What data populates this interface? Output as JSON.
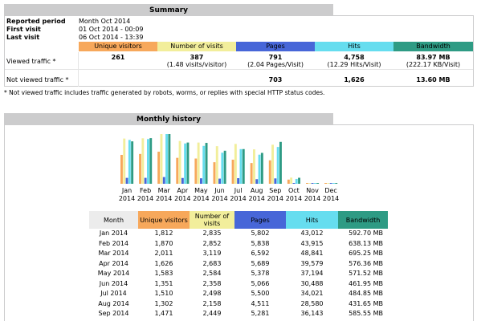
{
  "colors": {
    "unique_visitors": "#f7a85b",
    "visits": "#f2ee9b",
    "pages": "#4766d8",
    "hits": "#66ddef",
    "bandwidth": "#2e9b84",
    "title_bar": "#cccccd"
  },
  "summary": {
    "title": "Summary",
    "reported_period_label": "Reported period",
    "reported_period_value": "Month Oct 2014",
    "first_visit_label": "First visit",
    "first_visit_value": "01 Oct 2014 - 00:09",
    "last_visit_label": "Last visit",
    "last_visit_value": "06 Oct 2014 - 13:39",
    "headers": {
      "unique_visitors": "Unique visitors",
      "visits": "Number of visits",
      "pages": "Pages",
      "hits": "Hits",
      "bandwidth": "Bandwidth"
    },
    "viewed": {
      "label": "Viewed traffic *",
      "unique_visitors": "261",
      "visits": "387",
      "visits_sub": "(1.48 visits/visitor)",
      "pages": "791",
      "pages_sub": "(2.04 Pages/Visit)",
      "hits": "4,758",
      "hits_sub": "(12.29 Hits/Visit)",
      "bandwidth": "83.97 MB",
      "bandwidth_sub": "(222.17 KB/Visit)"
    },
    "not_viewed": {
      "label": "Not viewed traffic *",
      "pages": "703",
      "hits": "1,626",
      "bandwidth": "13.60 MB"
    },
    "note": "* Not viewed traffic includes traffic generated by robots, worms, or replies with special HTTP status codes."
  },
  "monthly": {
    "title": "Monthly history",
    "table_headers": {
      "month": "Month",
      "unique_visitors": "Unique visitors",
      "visits": "Number of visits",
      "pages": "Pages",
      "hits": "Hits",
      "bandwidth": "Bandwidth"
    },
    "rows": [
      {
        "month": "Jan 2014",
        "uv": "1,812",
        "visits": "2,835",
        "pages": "5,802",
        "hits": "43,012",
        "bw": "592.70 MB"
      },
      {
        "month": "Feb 2014",
        "uv": "1,870",
        "visits": "2,852",
        "pages": "5,838",
        "hits": "43,915",
        "bw": "638.13 MB"
      },
      {
        "month": "Mar 2014",
        "uv": "2,011",
        "visits": "3,119",
        "pages": "6,592",
        "hits": "48,841",
        "bw": "695.25 MB"
      },
      {
        "month": "Apr 2014",
        "uv": "1,626",
        "visits": "2,683",
        "pages": "5,689",
        "hits": "39,579",
        "bw": "576.36 MB"
      },
      {
        "month": "May 2014",
        "uv": "1,583",
        "visits": "2,584",
        "pages": "5,378",
        "hits": "37,194",
        "bw": "571.52 MB"
      },
      {
        "month": "Jun 2014",
        "uv": "1,351",
        "visits": "2,358",
        "pages": "5,066",
        "hits": "30,488",
        "bw": "461.95 MB"
      },
      {
        "month": "Jul 2014",
        "uv": "1,510",
        "visits": "2,498",
        "pages": "5,500",
        "hits": "34,021",
        "bw": "484.85 MB"
      },
      {
        "month": "Aug 2014",
        "uv": "1,302",
        "visits": "2,158",
        "pages": "4,511",
        "hits": "28,580",
        "bw": "431.65 MB"
      },
      {
        "month": "Sep 2014",
        "uv": "1,471",
        "visits": "2,449",
        "pages": "5,281",
        "hits": "36,143",
        "bw": "585.55 MB"
      }
    ]
  },
  "chart_data": {
    "type": "bar",
    "categories": [
      "Jan 2014",
      "Feb 2014",
      "Mar 2014",
      "Apr 2014",
      "May 2014",
      "Jun 2014",
      "Jul 2014",
      "Aug 2014",
      "Sep 2014",
      "Oct 2014",
      "Nov 2014",
      "Dec 2014"
    ],
    "month_labels": [
      "Jan",
      "Feb",
      "Mar",
      "Apr",
      "May",
      "Jun",
      "Jul",
      "Aug",
      "Sep",
      "Oct",
      "Nov",
      "Dec"
    ],
    "year_labels": [
      "2014",
      "2014",
      "2014",
      "2014",
      "2014",
      "2014",
      "2014",
      "2014",
      "2014",
      "2014",
      "2014",
      "2014"
    ],
    "series": [
      {
        "key": "uv",
        "values": [
          1812,
          1870,
          2011,
          1626,
          1583,
          1351,
          1510,
          1302,
          1471,
          261,
          0,
          0
        ]
      },
      {
        "key": "visits",
        "values": [
          2835,
          2852,
          3119,
          2683,
          2584,
          2358,
          2498,
          2158,
          2449,
          387,
          0,
          0
        ]
      },
      {
        "key": "pages",
        "values": [
          5802,
          5838,
          6592,
          5689,
          5378,
          5066,
          5500,
          4511,
          5281,
          791,
          0,
          0
        ]
      },
      {
        "key": "hits",
        "values": [
          43012,
          43915,
          48841,
          39579,
          37194,
          30488,
          34021,
          28580,
          36143,
          4758,
          0,
          0
        ]
      },
      {
        "key": "bandwidth",
        "values": [
          592.7,
          638.13,
          695.25,
          576.36,
          571.52,
          461.95,
          484.85,
          431.65,
          585.55,
          83.97,
          0,
          0
        ]
      }
    ]
  }
}
